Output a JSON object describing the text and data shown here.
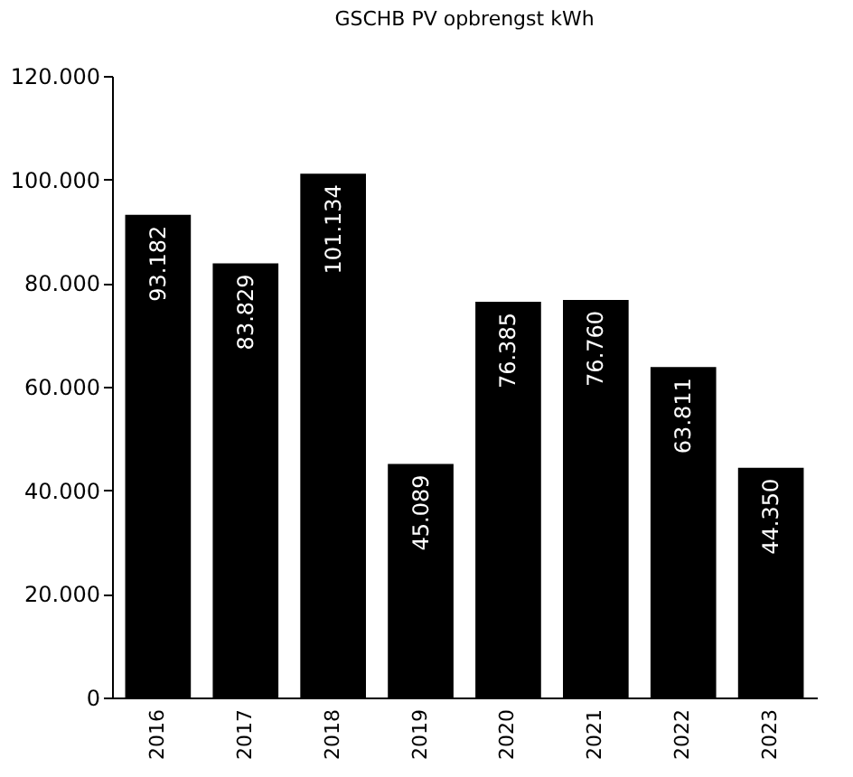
{
  "chart_data": {
    "type": "bar",
    "title": "GSCHB PV opbrengst kWh",
    "categories": [
      "2016",
      "2017",
      "2018",
      "2019",
      "2020",
      "2021",
      "2022",
      "2023"
    ],
    "values": [
      93182,
      83829,
      101134,
      45089,
      76385,
      76760,
      63811,
      44350
    ],
    "value_labels": [
      "93.182",
      "83.829",
      "101.134",
      "45.089",
      "76.385",
      "76.760",
      "63.811",
      "44.350"
    ],
    "color": "#000000",
    "ylim": [
      0,
      120000
    ],
    "yticks": [
      {
        "value": 0,
        "label": "0"
      },
      {
        "value": 20000,
        "label": "20.000"
      },
      {
        "value": 40000,
        "label": "40.000"
      },
      {
        "value": 60000,
        "label": "60.000"
      },
      {
        "value": 80000,
        "label": "80.000"
      },
      {
        "value": 100000,
        "label": "100.000"
      },
      {
        "value": 120000,
        "label": "120.000"
      }
    ],
    "grid": false
  }
}
